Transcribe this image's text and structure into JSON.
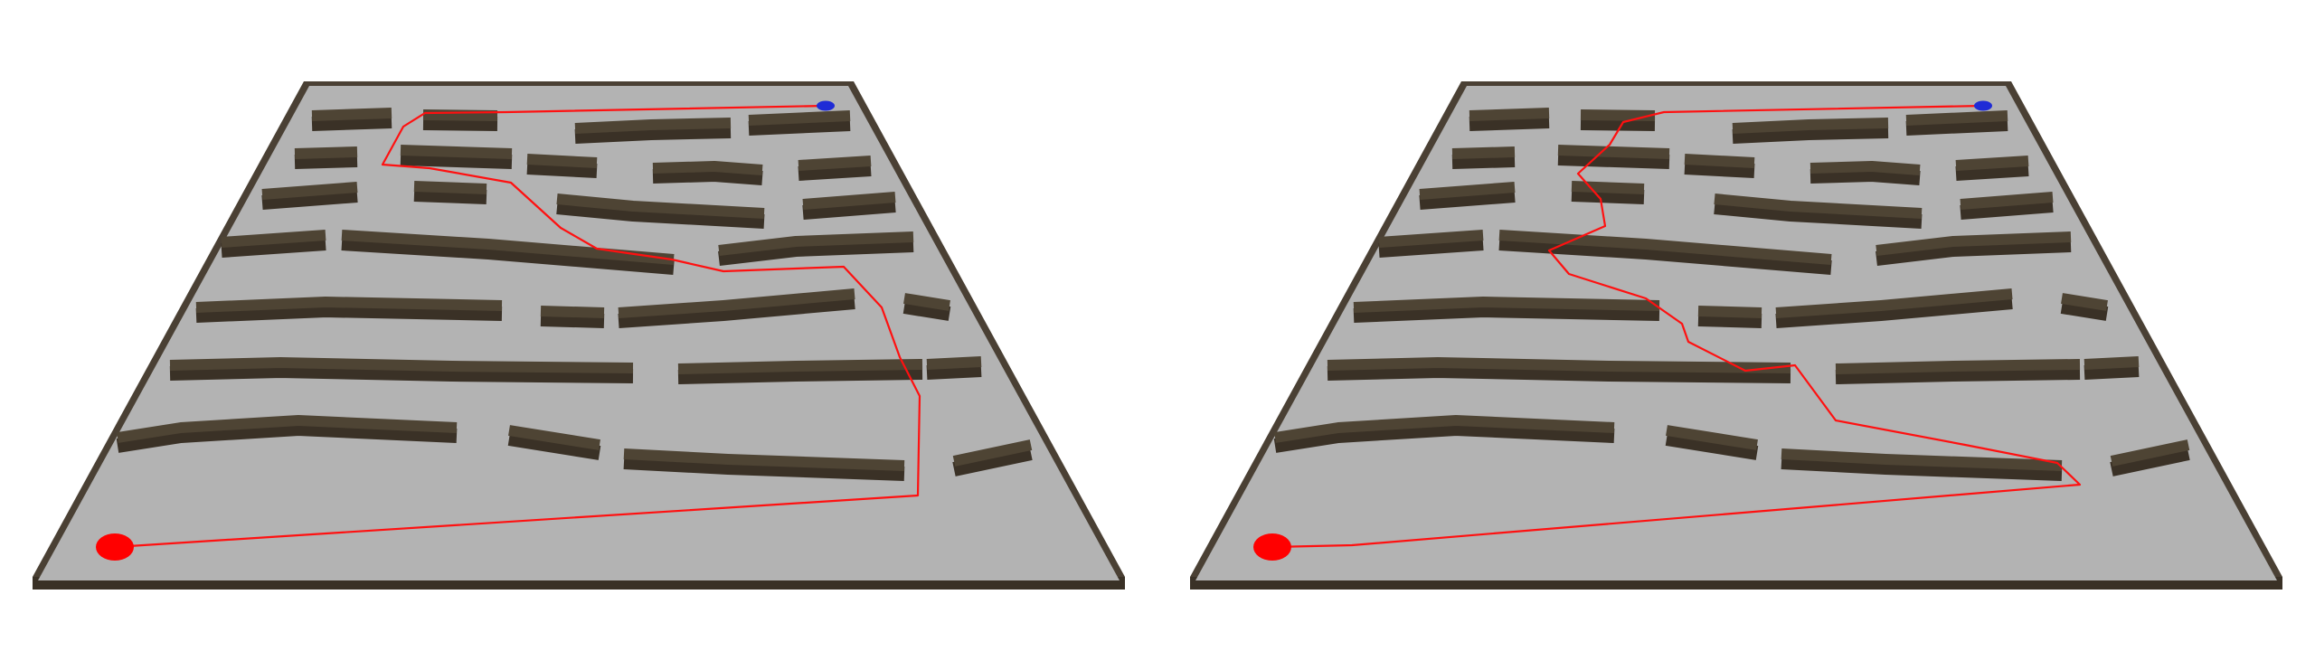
{
  "panels": [
    {
      "name": "maze-left",
      "start_color": "#ff0000",
      "goal_color": "#1f2bd6",
      "path_color": "#ff1010"
    },
    {
      "name": "maze-right",
      "start_color": "#ff0000",
      "goal_color": "#1f2bd6",
      "path_color": "#ff1010"
    }
  ],
  "colors": {
    "floor": "#b3b3b3",
    "wall_top": "#4e4434",
    "wall_side": "#3a3126",
    "border": "#4a4034",
    "background": "#ffffff"
  }
}
